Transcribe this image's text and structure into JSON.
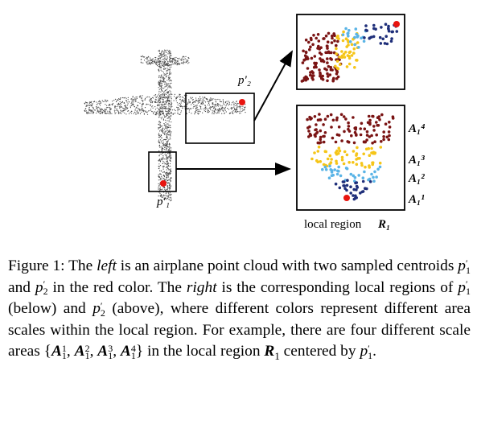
{
  "figure": {
    "labels": {
      "p2": "p'₂",
      "p1": "p'₁",
      "scale_labels": [
        "A₁⁴",
        "A₁³",
        "A₁²",
        "A₁¹"
      ],
      "local_region": "local region",
      "local_region_symbol": "R₁"
    },
    "colors": {
      "centroid": "#e8140f",
      "dark_red": "#7a1414",
      "yellow": "#f5c518",
      "light_blue": "#5ab4e6",
      "navy": "#1f2f7a",
      "cloud": "#444444"
    }
  },
  "caption": {
    "figure_label": "Figure 1: The ",
    "t1": " is an airplane point cloud with two sampled centroids ",
    "t2": " and ",
    "t3": " in the red color. The ",
    "t4": " is the corresponding local regions of ",
    "t5": " (below) and ",
    "t6": " (above), where different colors represent different area scales within the local region. For example, there are four different scale areas ",
    "t7": " in the local region ",
    "t8": " centered by ",
    "t9": ".",
    "left_word": "left",
    "right_word": "right",
    "set_open": "{",
    "set_close": "}",
    "comma": ", "
  }
}
